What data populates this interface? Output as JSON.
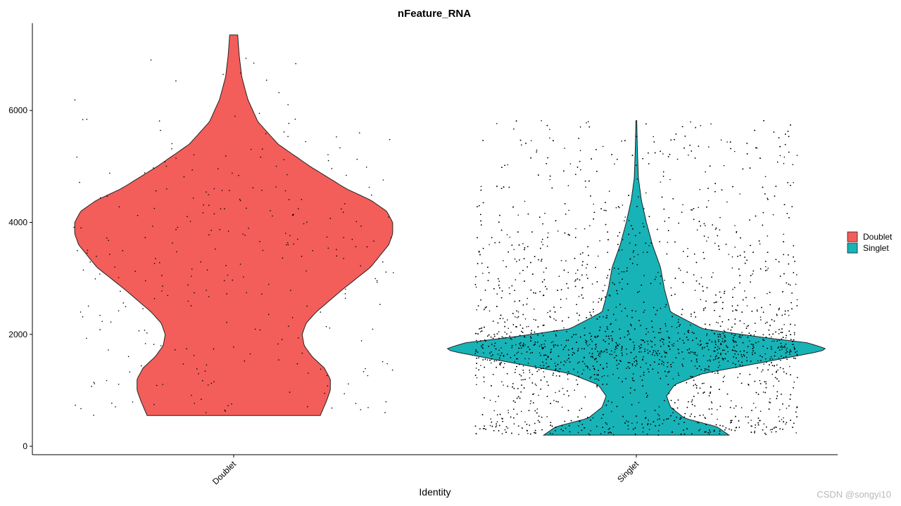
{
  "chart_data": {
    "type": "violin",
    "title": "nFeature_RNA",
    "xlabel": "Identity",
    "ylabel": "",
    "categories": [
      "Doublet",
      "Singlet"
    ],
    "ylim": [
      -150,
      7560
    ],
    "yticks": [
      0,
      2000,
      4000,
      6000
    ],
    "ytick_labels": [
      "0",
      "2000",
      "4000",
      "6000"
    ],
    "grid": false,
    "legend": {
      "position": "right",
      "entries": [
        "Doublet",
        "Singlet"
      ]
    },
    "colors": {
      "Doublet": "#F35E5A",
      "Singlet": "#17B3B7"
    },
    "series": [
      {
        "name": "Doublet",
        "min": 550,
        "max": 7350,
        "points_shown": 300,
        "density": [
          [
            550,
            0.43
          ],
          [
            800,
            0.46
          ],
          [
            1000,
            0.48
          ],
          [
            1200,
            0.48
          ],
          [
            1400,
            0.45
          ],
          [
            1600,
            0.39
          ],
          [
            1800,
            0.35
          ],
          [
            2000,
            0.34
          ],
          [
            2200,
            0.36
          ],
          [
            2400,
            0.41
          ],
          [
            2800,
            0.54
          ],
          [
            3200,
            0.68
          ],
          [
            3600,
            0.77
          ],
          [
            3800,
            0.79
          ],
          [
            4000,
            0.79
          ],
          [
            4200,
            0.76
          ],
          [
            4400,
            0.68
          ],
          [
            4600,
            0.56
          ],
          [
            5000,
            0.38
          ],
          [
            5400,
            0.22
          ],
          [
            5800,
            0.12
          ],
          [
            6200,
            0.07
          ],
          [
            6600,
            0.04
          ],
          [
            7000,
            0.027
          ],
          [
            7350,
            0.02
          ]
        ]
      },
      {
        "name": "Singlet",
        "min": 200,
        "max": 5820,
        "points_shown": 5200,
        "density": [
          [
            200,
            0.46
          ],
          [
            350,
            0.4
          ],
          [
            500,
            0.24
          ],
          [
            700,
            0.17
          ],
          [
            900,
            0.15
          ],
          [
            1100,
            0.19
          ],
          [
            1300,
            0.33
          ],
          [
            1500,
            0.63
          ],
          [
            1700,
            0.92
          ],
          [
            1750,
            0.94
          ],
          [
            1850,
            0.85
          ],
          [
            1950,
            0.62
          ],
          [
            2100,
            0.33
          ],
          [
            2400,
            0.17
          ],
          [
            2800,
            0.14
          ],
          [
            3200,
            0.12
          ],
          [
            3600,
            0.08
          ],
          [
            4000,
            0.05
          ],
          [
            4400,
            0.025
          ],
          [
            4800,
            0.01
          ],
          [
            5200,
            0.006
          ],
          [
            5500,
            0.004
          ],
          [
            5820,
            0.002
          ]
        ]
      }
    ]
  },
  "watermark": "CSDN @songyi10"
}
